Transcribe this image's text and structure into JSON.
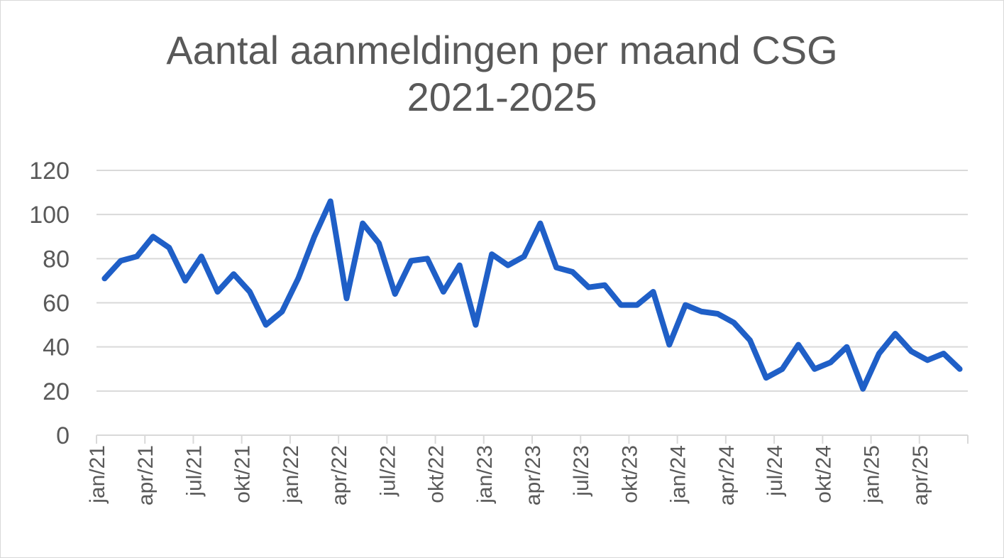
{
  "chart_data": {
    "type": "line",
    "title_lines": [
      "Aantal aanmeldingen per maand CSG",
      "2021-2025"
    ],
    "xlabel": "",
    "ylabel": "",
    "ylim": [
      0,
      120
    ],
    "yticks": [
      0,
      20,
      40,
      60,
      80,
      100,
      120
    ],
    "grid": true,
    "legend": "none",
    "line_color": "#1f5fc7",
    "grid_color": "#d9d9d9",
    "x_tick_labels": [
      "jan/21",
      "apr/21",
      "jul/21",
      "okt/21",
      "jan/22",
      "apr/22",
      "jul/22",
      "okt/22",
      "jan/23",
      "apr/23",
      "jul/23",
      "okt/23",
      "jan/24",
      "apr/24",
      "jul/24",
      "okt/24",
      "jan/25",
      "apr/25"
    ],
    "x": [
      "jan/21",
      "feb/21",
      "mrt/21",
      "apr/21",
      "mei/21",
      "jun/21",
      "jul/21",
      "aug/21",
      "sep/21",
      "okt/21",
      "nov/21",
      "dec/21",
      "jan/22",
      "feb/22",
      "mrt/22",
      "apr/22",
      "mei/22",
      "jun/22",
      "jul/22",
      "aug/22",
      "sep/22",
      "okt/22",
      "nov/22",
      "dec/22",
      "jan/23",
      "feb/23",
      "mrt/23",
      "apr/23",
      "mei/23",
      "jun/23",
      "jul/23",
      "aug/23",
      "sep/23",
      "okt/23",
      "nov/23",
      "dec/23",
      "jan/24",
      "feb/24",
      "mrt/24",
      "apr/24",
      "mei/24",
      "jun/24",
      "jul/24",
      "aug/24",
      "sep/24",
      "okt/24",
      "nov/24",
      "dec/24",
      "jan/25",
      "feb/25",
      "mrt/25",
      "apr/25",
      "mei/25",
      "jun/25"
    ],
    "series": [
      {
        "values": [
          71,
          79,
          81,
          90,
          85,
          70,
          81,
          65,
          73,
          65,
          50,
          56,
          71,
          90,
          106,
          62,
          96,
          87,
          64,
          79,
          80,
          65,
          77,
          50,
          82,
          77,
          81,
          96,
          76,
          74,
          67,
          68,
          59,
          59,
          65,
          41,
          59,
          56,
          55,
          51,
          43,
          26,
          30,
          41,
          30,
          33,
          40,
          21,
          37,
          46,
          38,
          34,
          37,
          30
        ]
      }
    ]
  }
}
